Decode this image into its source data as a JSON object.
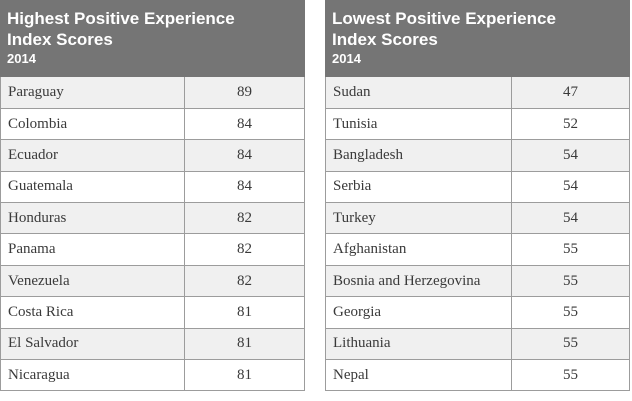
{
  "chart_data": [
    {
      "type": "table",
      "title": "Highest Positive Experience Index Scores",
      "subtitle": "2014",
      "rows": [
        {
          "country": "Paraguay",
          "score": 89
        },
        {
          "country": "Colombia",
          "score": 84
        },
        {
          "country": "Ecuador",
          "score": 84
        },
        {
          "country": "Guatemala",
          "score": 84
        },
        {
          "country": "Honduras",
          "score": 82
        },
        {
          "country": "Panama",
          "score": 82
        },
        {
          "country": "Venezuela",
          "score": 82
        },
        {
          "country": "Costa Rica",
          "score": 81
        },
        {
          "country": "El Salvador",
          "score": 81
        },
        {
          "country": "Nicaragua",
          "score": 81
        }
      ]
    },
    {
      "type": "table",
      "title": "Lowest Positive Experience Index Scores",
      "subtitle": "2014",
      "rows": [
        {
          "country": "Sudan",
          "score": 47
        },
        {
          "country": "Tunisia",
          "score": 52
        },
        {
          "country": "Bangladesh",
          "score": 54
        },
        {
          "country": "Serbia",
          "score": 54
        },
        {
          "country": "Turkey",
          "score": 54
        },
        {
          "country": "Afghanistan",
          "score": 55
        },
        {
          "country": "Bosnia and Herzegovina",
          "score": 55
        },
        {
          "country": "Georgia",
          "score": 55
        },
        {
          "country": "Lithuania",
          "score": 55
        },
        {
          "country": "Nepal",
          "score": 55
        }
      ]
    }
  ],
  "colors": {
    "header_bg": "#757575",
    "header_text": "#ffffff",
    "row_shaded": "#f0f0f0",
    "row_plain": "#ffffff",
    "border": "#9c9c9c",
    "body_text": "#3a3a3a"
  }
}
